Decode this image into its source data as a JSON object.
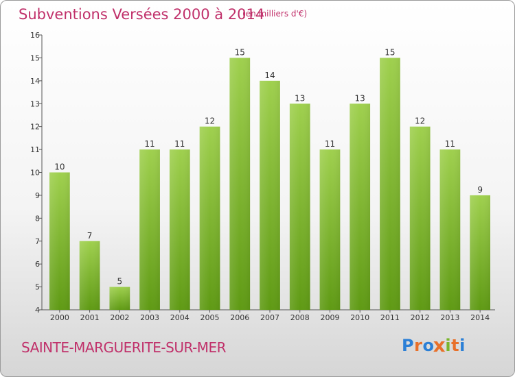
{
  "header": {
    "title": "Subventions Versées 2000 à 2014",
    "unit": "(en milliers d'€)"
  },
  "footer": {
    "commune": "SAINTE-MARGUERITE-SUR-MER",
    "logo": "Proxiti"
  },
  "colors": {
    "accent": "#c0306a",
    "bar_top": "#9fd04e",
    "bar_bottom": "#5f9a14",
    "logo": [
      "#2b7fd6",
      "#e8702a",
      "#2b7fd6",
      "#e8702a",
      "#79b52a",
      "#e8702a",
      "#2b7fd6"
    ]
  },
  "chart_data": {
    "type": "bar",
    "categories": [
      "2000",
      "2001",
      "2002",
      "2003",
      "2004",
      "2005",
      "2006",
      "2007",
      "2008",
      "2009",
      "2010",
      "2011",
      "2012",
      "2013",
      "2014"
    ],
    "values": [
      10,
      7,
      5,
      11,
      11,
      12,
      15,
      14,
      13,
      11,
      13,
      15,
      12,
      11,
      9
    ],
    "ylim": [
      4,
      16
    ],
    "yticks": [
      "4",
      "5",
      "6",
      "7",
      "8",
      "9",
      "10",
      "11",
      "12",
      "13",
      "14",
      "15",
      "16"
    ],
    "grid": false
  }
}
